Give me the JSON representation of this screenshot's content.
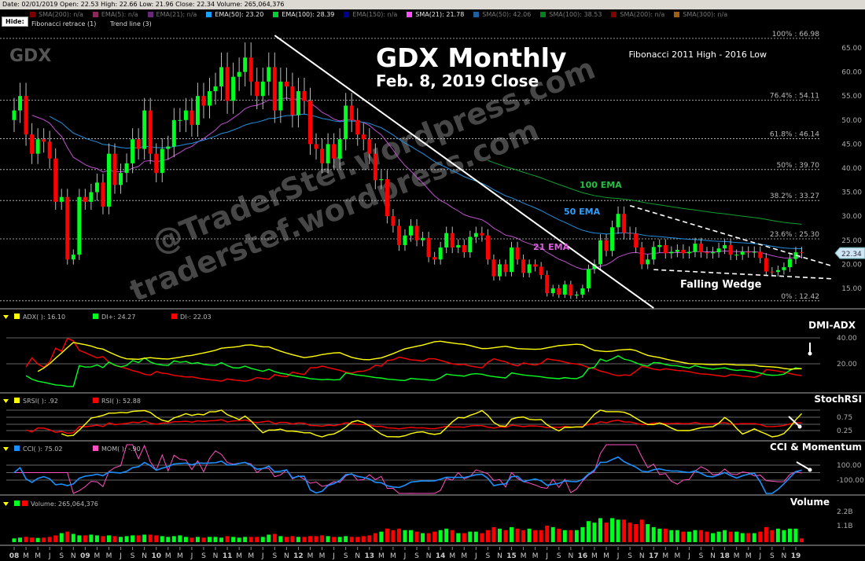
{
  "topbar": {
    "text": "Date: 02/01/2019  Open: 22.53  High: 22.66  Low: 21.96  Close: 22.34  Volume: 265,064,376"
  },
  "legend": {
    "hide_label": "Hide:",
    "items": [
      {
        "label": "SMA(200): n/a",
        "color": "#7a0000",
        "active": false
      },
      {
        "label": "EMA(5): n/a",
        "color": "#8a2a5a",
        "active": false
      },
      {
        "label": "EMA(21): n/a",
        "color": "#6a2a7a",
        "active": false
      },
      {
        "label": "EMA(50): 23.20",
        "color": "#1aa0ff",
        "active": true
      },
      {
        "label": "EMA(100): 28.39",
        "color": "#00d030",
        "active": true
      },
      {
        "label": "EMA(150): n/a",
        "color": "#000090",
        "active": false
      },
      {
        "label": "SMA(21): 21.78",
        "color": "#ff50ff",
        "active": true
      },
      {
        "label": "SMA(50): 42.06",
        "color": "#2060a0",
        "active": false
      },
      {
        "label": "SMA(100): 38.53",
        "color": "#00801a",
        "active": false
      },
      {
        "label": "SMA(200): n/a",
        "color": "#800000",
        "active": false
      },
      {
        "label": "SMA(300): n/a",
        "color": "#a06010",
        "active": false
      }
    ],
    "overlays": [
      "Fibonacci retrace (1)",
      "Trend line (3)"
    ]
  },
  "chart_data": {
    "type": "candlestick",
    "title": "GDX Monthly",
    "subtitle": "Feb. 8, 2019 Close",
    "symbol": "GDX",
    "start_month": "2008-01",
    "closes": [
      52,
      55,
      47,
      43,
      46,
      45.5,
      42,
      33,
      34,
      21,
      22,
      34,
      33,
      35,
      37,
      32,
      43,
      36.5,
      39,
      41,
      46,
      44,
      52,
      43,
      39,
      44,
      44.5,
      50,
      50,
      52,
      49,
      55,
      53,
      56,
      57,
      61,
      54,
      59,
      60,
      63,
      58,
      55,
      58,
      61,
      52,
      58,
      57,
      51,
      56,
      54,
      45,
      44,
      41,
      45,
      42,
      46,
      53,
      50,
      47,
      46,
      43,
      37.5,
      37.7,
      30,
      28,
      24,
      26,
      28,
      25,
      25.5,
      21.5,
      21,
      23.5,
      26.5,
      23.5,
      24,
      22.5,
      25.7,
      26.5,
      26,
      21,
      17.5,
      20,
      18.4,
      23.5,
      21,
      18.2,
      20,
      19.5,
      17.8,
      14,
      15,
      13.7,
      15.8,
      13.5,
      13.7,
      15,
      19,
      20,
      25,
      22.8,
      27.7,
      30.5,
      26.5,
      26.4,
      23.5,
      20,
      21,
      23.6,
      24,
      22.3,
      22.6,
      23,
      22.3,
      22.6,
      24.3,
      22.5,
      22.3,
      22.5,
      23.3,
      24,
      22,
      22,
      22.6,
      22.5,
      22.6,
      21.3,
      18.5,
      18.4,
      18.8,
      19.4,
      21.1,
      22.5,
      22.34
    ],
    "first_open": 50,
    "volume_billions": [
      0.25,
      0.3,
      0.35,
      0.3,
      0.28,
      0.3,
      0.35,
      0.45,
      0.6,
      0.7,
      0.55,
      0.45,
      0.45,
      0.5,
      0.45,
      0.4,
      0.45,
      0.4,
      0.35,
      0.4,
      0.45,
      0.45,
      0.5,
      0.5,
      0.45,
      0.4,
      0.35,
      0.4,
      0.45,
      0.35,
      0.3,
      0.35,
      0.3,
      0.35,
      0.35,
      0.3,
      0.4,
      0.35,
      0.3,
      0.35,
      0.35,
      0.35,
      0.35,
      0.5,
      0.55,
      0.4,
      0.35,
      0.4,
      0.35,
      0.35,
      0.4,
      0.4,
      0.45,
      0.4,
      0.35,
      0.35,
      0.4,
      0.35,
      0.35,
      0.4,
      0.45,
      0.6,
      0.7,
      0.9,
      0.8,
      0.9,
      0.8,
      0.8,
      0.7,
      0.6,
      0.6,
      0.7,
      0.8,
      0.9,
      0.8,
      0.6,
      0.6,
      0.7,
      0.7,
      0.6,
      0.8,
      1.0,
      0.9,
      0.8,
      1.0,
      0.9,
      0.8,
      0.9,
      0.8,
      0.8,
      1.1,
      1.0,
      0.9,
      0.8,
      0.8,
      0.8,
      1.0,
      1.4,
      1.3,
      1.6,
      1.3,
      1.6,
      1.5,
      1.5,
      1.3,
      1.2,
      1.5,
      1.2,
      1.0,
      0.9,
      0.9,
      0.8,
      0.8,
      0.7,
      0.7,
      0.8,
      0.8,
      0.7,
      0.6,
      0.7,
      0.8,
      0.7,
      0.7,
      0.6,
      0.6,
      0.6,
      0.7,
      1.0,
      0.8,
      0.9,
      0.8,
      0.9,
      0.9,
      0.25
    ],
    "last_price": "22.34",
    "price_axis": {
      "ylim": [
        12,
        67
      ],
      "ticks": [
        "65.00",
        "60.00",
        "55.00",
        "50.00",
        "45.00",
        "40.00",
        "35.00",
        "30.00",
        "25.00",
        "20.00",
        "15.00"
      ]
    },
    "x_ticks": [
      "08",
      "M",
      "M",
      "J",
      "S",
      "N",
      "09",
      "M",
      "M",
      "J",
      "S",
      "N",
      "10",
      "M",
      "M",
      "J",
      "S",
      "N",
      "11",
      "M",
      "M",
      "J",
      "S",
      "N",
      "12",
      "M",
      "M",
      "J",
      "S",
      "N",
      "13",
      "M",
      "M",
      "J",
      "S",
      "N",
      "14",
      "M",
      "M",
      "J",
      "S",
      "N",
      "15",
      "M",
      "M",
      "J",
      "S",
      "N",
      "16",
      "M",
      "M",
      "J",
      "S",
      "N",
      "17",
      "M",
      "M",
      "J",
      "S",
      "N",
      "18",
      "M",
      "M",
      "J",
      "S",
      "N",
      "19"
    ],
    "fibonacci": {
      "title": "Fibonacci 2011 High - 2016 Low",
      "levels": [
        {
          "label": "100% : 66.98",
          "price": 66.98
        },
        {
          "label": "76.4% : 54.11",
          "price": 54.11
        },
        {
          "label": "61.8% : 46.14",
          "price": 46.14
        },
        {
          "label": "50% : 39.70",
          "price": 39.7
        },
        {
          "label": "38.2% : 33.27",
          "price": 33.27
        },
        {
          "label": "23.6% : 25.30",
          "price": 25.3
        },
        {
          "label": "0% : 12.42",
          "price": 12.42
        }
      ]
    },
    "trend_lines": [
      {
        "from": [
          "2011-09",
          67.6
        ],
        "to": [
          "2017-01",
          10.9
        ],
        "style": "solid"
      },
      {
        "from": [
          "2016-09",
          32.2
        ],
        "to": [
          "2019-07",
          19.7
        ],
        "style": "dashed"
      },
      {
        "from": [
          "2017-01",
          18.9
        ],
        "to": [
          "2019-07",
          17.0
        ],
        "style": "dashed"
      }
    ],
    "annotations": [
      {
        "text": "100 EMA",
        "color": "#22c040"
      },
      {
        "text": "50 EMA",
        "color": "#30a0ff"
      },
      {
        "text": "21 EMA",
        "color": "#e060e0"
      },
      {
        "text": "Falling Wedge",
        "color": "#ffffff"
      }
    ],
    "watermarks": [
      "@TraderStef.wordpress.com",
      "traderstef.wordpress.com"
    ],
    "panes": {
      "dmi": {
        "title": "DMI-ADX",
        "legend": [
          "ADX(  ): 16.10",
          "DI+: 24.27",
          "DI-: 22.03"
        ],
        "colors": [
          "#ffff00",
          "#00ff20",
          "#ff0000"
        ],
        "ticks": [
          "40.00",
          "20.00"
        ]
      },
      "stochrsi": {
        "title": "StochRSI",
        "legend": [
          "SRSI(  ): .92",
          "RSI(  ): 52.88"
        ],
        "colors": [
          "#ffff00",
          "#ff0000"
        ],
        "ticks": [
          "0.75",
          "0.25"
        ]
      },
      "cci": {
        "title": "CCI & Momentum",
        "legend": [
          "CCI(  ): 75.02",
          "MOM(  ): -.90"
        ],
        "colors": [
          "#1a90ff",
          "#ff50c0"
        ],
        "ticks": [
          "100.00",
          "-100.00"
        ]
      },
      "volume": {
        "title": "Volume",
        "legend": [
          "Volume: 265,064,376"
        ],
        "colors": [
          "#00ff20",
          "#ff0000"
        ],
        "ticks": [
          "2.2B",
          "1.1B"
        ]
      }
    },
    "colors": {
      "up": "#00ff20",
      "down": "#ff0000",
      "ema21": "#c050d0",
      "ema50": "#2090e0",
      "ema100": "#10a030"
    }
  }
}
